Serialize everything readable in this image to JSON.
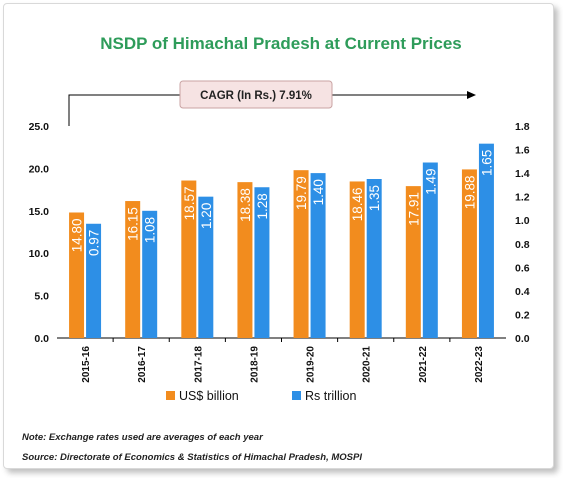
{
  "chart_data": {
    "type": "bar",
    "title": "NSDP of Himachal Pradesh at Current Prices",
    "categories": [
      "2015-16",
      "2016-17",
      "2017-18",
      "2018-19",
      "2019-20",
      "2020-21",
      "2021-22",
      "2022-23"
    ],
    "series": [
      {
        "name": "US$ billion",
        "axis": "left",
        "color": "#f28c1e",
        "values": [
          14.8,
          16.15,
          18.57,
          18.38,
          19.79,
          18.46,
          17.91,
          19.88
        ],
        "labels": [
          "14.80",
          "16.15",
          "18.57",
          "18.38",
          "19.79",
          "18.46",
          "17.91",
          "19.88"
        ]
      },
      {
        "name": "Rs trillion",
        "axis": "right",
        "color": "#2d8fe6",
        "values": [
          0.97,
          1.08,
          1.2,
          1.28,
          1.4,
          1.35,
          1.49,
          1.65
        ],
        "labels": [
          "0.97",
          "1.08",
          "1.20",
          "1.28",
          "1.40",
          "1.35",
          "1.49",
          "1.65"
        ]
      }
    ],
    "y_left": {
      "min": 0,
      "max": 25,
      "ticks": [
        "0.0",
        "5.0",
        "10.0",
        "15.0",
        "20.0",
        "25.0"
      ]
    },
    "y_right": {
      "min": 0,
      "max": 1.8,
      "ticks": [
        "0.0",
        "0.2",
        "0.4",
        "0.6",
        "0.8",
        "1.0",
        "1.2",
        "1.4",
        "1.6",
        "1.8"
      ]
    },
    "annotation": "CAGR (In Rs.) 7.91%",
    "legend_position": "bottom",
    "grid": false
  },
  "notes": {
    "note": "Note: Exchange rates used are averages of each year",
    "source": "Source: Directorate of Economics & Statistics of Himachal Pradesh, MOSPI"
  },
  "colors": {
    "title": "#2e9c5a",
    "annotation_fill": "#f6e3e3",
    "annotation_border": "#c9a3a3"
  }
}
